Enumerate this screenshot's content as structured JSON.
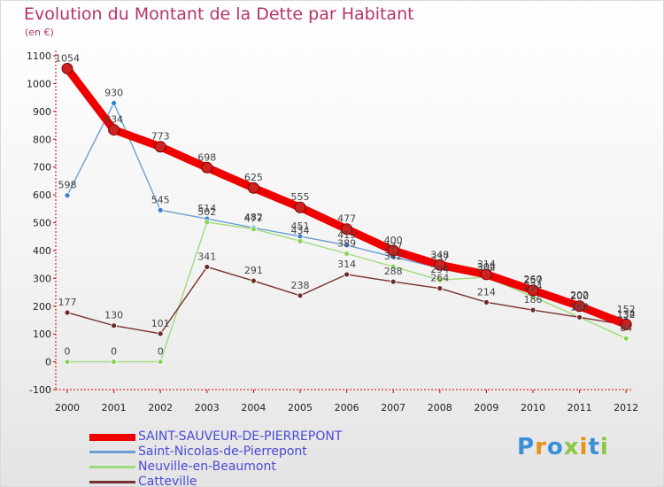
{
  "title": "Evolution du Montant de la Dette par Habitant",
  "subtitle": "(en €)",
  "logo": {
    "text": "Proxiti",
    "letters": [
      {
        "ch": "P",
        "color": "#3a8fd6"
      },
      {
        "ch": "r",
        "color": "#e8911a"
      },
      {
        "ch": "o",
        "color": "#3a8fd6"
      },
      {
        "ch": "x",
        "color": "#8cc63f"
      },
      {
        "ch": "i",
        "color": "#e8911a"
      },
      {
        "ch": "t",
        "color": "#3a8fd6"
      },
      {
        "ch": "i",
        "color": "#8cc63f"
      }
    ]
  },
  "chart_data": {
    "type": "line",
    "title": "Evolution du Montant de la Dette par Habitant",
    "ylabel": "(en €)",
    "xlabel": "",
    "categories": [
      "2000",
      "2001",
      "2002",
      "2003",
      "2004",
      "2005",
      "2006",
      "2007",
      "2008",
      "2009",
      "2010",
      "2011",
      "2012"
    ],
    "ylim": [
      -100,
      1100
    ],
    "yticks": [
      -100,
      0,
      100,
      200,
      300,
      400,
      500,
      600,
      700,
      800,
      900,
      1000,
      1100
    ],
    "grid": false,
    "legend": "bottom",
    "series": [
      {
        "name": "SAINT-SAUVEUR-DE-PIERREPONT",
        "color": "#ee0000",
        "marker": "#cc2222",
        "emphasis": true,
        "values": [
          1054,
          834,
          773,
          698,
          625,
          555,
          477,
          400,
          348,
          314,
          257,
          200,
          134
        ]
      },
      {
        "name": "Saint-Nicolas-de-Pierrepont",
        "color": "#6a9fd2",
        "marker": "#3a7fd0",
        "values": [
          598,
          930,
          545,
          514,
          482,
          451,
          419,
          377,
          337,
          302,
          260,
          202,
          152
        ]
      },
      {
        "name": "Neuville-en-Beaumont",
        "color": "#9fdc7a",
        "marker": "#86d45a",
        "values": [
          0,
          0,
          0,
          502,
          477,
          434,
          389,
          342,
          294,
          304,
          234,
          160,
          84
        ]
      },
      {
        "name": "Catteville",
        "color": "#7a3030",
        "marker": "#6e2a2a",
        "values": [
          177,
          130,
          101,
          341,
          291,
          238,
          314,
          288,
          264,
          214,
          186,
          160,
          132
        ]
      }
    ]
  }
}
